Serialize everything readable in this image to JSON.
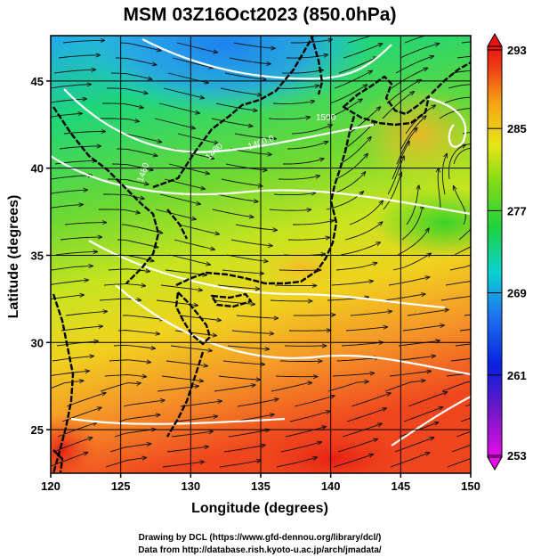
{
  "title": "MSM 03Z16Oct2023 (850.0hPa)",
  "xlabel": "Longitude (degrees)",
  "ylabel": "Latitude  (degrees)",
  "x_ticks": [
    "120",
    "125",
    "130",
    "135",
    "140",
    "145",
    "150"
  ],
  "y_ticks": [
    "25",
    "30",
    "35",
    "40",
    "45"
  ],
  "colorbar_ticks": [
    "293",
    "285",
    "277",
    "269",
    "261",
    "253"
  ],
  "contour_labels": [
    "1480",
    "1400.0",
    "1480",
    "1500"
  ],
  "footer_line1": "Drawing by DCL (https://www.gfd-dennou.org/library/dcl/)",
  "footer_line2": "Data from http://database.rish.kyoto-u.ac.jp/arch/jmadata/",
  "colors": {
    "coast": "#000000",
    "contour": "#ffffff",
    "streamline": "#111111",
    "frame": "#000000"
  },
  "chart_data": {
    "type": "heatmap",
    "field": "temperature",
    "xlim": [
      120,
      150
    ],
    "ylim": [
      22.5,
      47.6
    ],
    "color_range": [
      253,
      293
    ],
    "overlays": [
      "streamlines",
      "geopotential-height contours",
      "coastlines"
    ]
  }
}
